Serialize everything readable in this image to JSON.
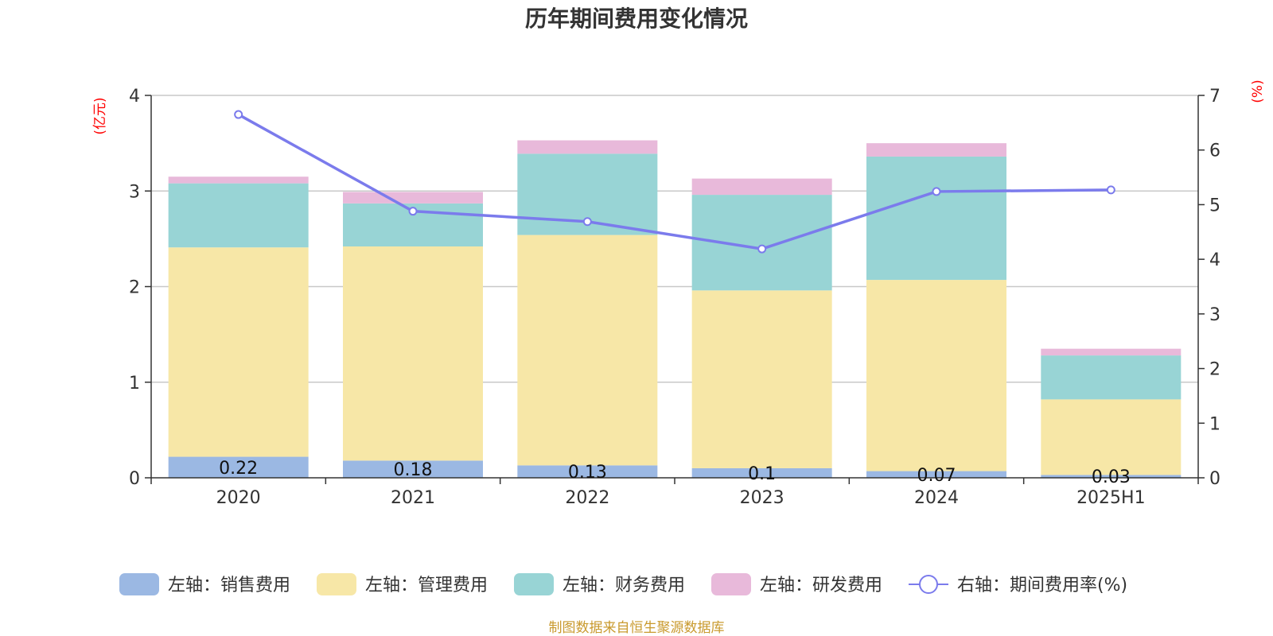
{
  "chart_data": {
    "type": "bar",
    "title": "历年期间费用变化情况",
    "categories": [
      "2020",
      "2021",
      "2022",
      "2023",
      "2024",
      "2025H1"
    ],
    "y_left": {
      "unit": "(亿元)",
      "range": [
        0,
        4
      ],
      "ticks": [
        "0",
        "1",
        "2",
        "3",
        "4"
      ]
    },
    "y_right": {
      "unit": "(%)",
      "range": [
        0,
        7
      ],
      "ticks": [
        "0",
        "1",
        "2",
        "3",
        "4",
        "5",
        "6",
        "7"
      ]
    },
    "series": [
      {
        "name": "左轴：销售费用",
        "type": "bar",
        "stack": "total",
        "axis": "left",
        "color": "#9bb8e3",
        "values": [
          0.22,
          0.18,
          0.13,
          0.1,
          0.07,
          0.03
        ],
        "labels": [
          "0.22",
          "0.18",
          "0.13",
          "0.1",
          "0.07",
          "0.03"
        ]
      },
      {
        "name": "左轴：管理费用",
        "type": "bar",
        "stack": "total",
        "axis": "left",
        "color": "#f7e7a7",
        "values": [
          2.19,
          2.24,
          2.41,
          1.86,
          2.0,
          0.79
        ]
      },
      {
        "name": "左轴：财务费用",
        "type": "bar",
        "stack": "total",
        "axis": "left",
        "color": "#98d4d5",
        "values": [
          0.67,
          0.45,
          0.85,
          1.0,
          1.29,
          0.46
        ]
      },
      {
        "name": "左轴：研发费用",
        "type": "bar",
        "stack": "total",
        "axis": "left",
        "color": "#e8b9da",
        "values": [
          0.07,
          0.12,
          0.14,
          0.17,
          0.14,
          0.07
        ]
      },
      {
        "name": "右轴：期间费用率(%)",
        "type": "line",
        "axis": "right",
        "color": "#7b7bec",
        "values": [
          6.65,
          4.88,
          4.69,
          4.19,
          5.24,
          5.27
        ]
      }
    ],
    "grid": true,
    "legend_position": "bottom"
  },
  "source": "制图数据来自恒生聚源数据库"
}
